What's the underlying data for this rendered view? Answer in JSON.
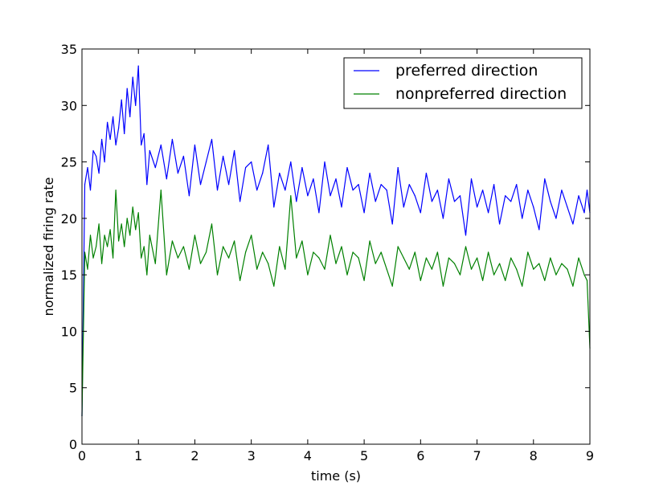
{
  "chart_data": {
    "type": "line",
    "title": "",
    "xlabel": "time (s)",
    "ylabel": "normalized firing rate",
    "xlim": [
      0,
      9
    ],
    "ylim": [
      0,
      35
    ],
    "x_ticks": [
      "0",
      "1",
      "2",
      "3",
      "4",
      "5",
      "6",
      "7",
      "8",
      "9"
    ],
    "y_ticks": [
      "0",
      "5",
      "10",
      "15",
      "20",
      "25",
      "30",
      "35"
    ],
    "grid": false,
    "legend_position": "top-right",
    "x": [
      0,
      0.05,
      0.1,
      0.15,
      0.2,
      0.25,
      0.3,
      0.35,
      0.4,
      0.45,
      0.5,
      0.55,
      0.6,
      0.65,
      0.7,
      0.75,
      0.8,
      0.85,
      0.9,
      0.95,
      1.0,
      1.05,
      1.1,
      1.15,
      1.2,
      1.3,
      1.4,
      1.5,
      1.6,
      1.7,
      1.8,
      1.9,
      2.0,
      2.1,
      2.2,
      2.3,
      2.4,
      2.5,
      2.6,
      2.7,
      2.8,
      2.9,
      3.0,
      3.1,
      3.2,
      3.3,
      3.4,
      3.5,
      3.6,
      3.7,
      3.8,
      3.9,
      4.0,
      4.1,
      4.2,
      4.3,
      4.4,
      4.5,
      4.6,
      4.7,
      4.8,
      4.9,
      5.0,
      5.1,
      5.2,
      5.3,
      5.4,
      5.5,
      5.6,
      5.7,
      5.8,
      5.9,
      6.0,
      6.1,
      6.2,
      6.3,
      6.4,
      6.5,
      6.6,
      6.7,
      6.8,
      6.9,
      7.0,
      7.1,
      7.2,
      7.3,
      7.4,
      7.5,
      7.6,
      7.7,
      7.8,
      7.9,
      8.0,
      8.1,
      8.2,
      8.3,
      8.4,
      8.5,
      8.6,
      8.7,
      8.8,
      8.9,
      8.95,
      9.0
    ],
    "series": [
      {
        "name": "preferred direction",
        "color": "#0000ff",
        "values": [
          2.5,
          23.0,
          24.5,
          22.5,
          26.0,
          25.5,
          24.0,
          27.0,
          25.0,
          28.5,
          27.0,
          29.0,
          26.5,
          28.0,
          30.5,
          27.5,
          31.5,
          29.0,
          32.5,
          30.0,
          33.5,
          26.5,
          27.5,
          23.0,
          26.0,
          24.5,
          26.5,
          23.5,
          27.0,
          24.0,
          25.5,
          22.0,
          26.5,
          23.0,
          25.0,
          27.0,
          22.5,
          25.5,
          23.0,
          26.0,
          21.5,
          24.5,
          25.0,
          22.5,
          24.0,
          26.5,
          21.0,
          24.0,
          22.5,
          25.0,
          21.5,
          24.5,
          22.0,
          23.5,
          20.5,
          25.0,
          22.0,
          23.5,
          21.0,
          24.5,
          22.5,
          23.0,
          20.5,
          24.0,
          21.5,
          23.0,
          22.5,
          19.5,
          24.5,
          21.0,
          23.0,
          22.0,
          20.5,
          24.0,
          21.5,
          22.5,
          20.0,
          23.5,
          21.5,
          22.0,
          18.5,
          23.5,
          21.0,
          22.5,
          20.5,
          23.0,
          19.5,
          22.0,
          21.5,
          23.0,
          20.0,
          22.5,
          21.0,
          19.0,
          23.5,
          21.5,
          20.0,
          22.5,
          21.0,
          19.5,
          22.0,
          20.5,
          22.5,
          20.5
        ]
      },
      {
        "name": "nonpreferred direction",
        "color": "#008000",
        "values": [
          2.5,
          17.0,
          15.5,
          18.5,
          16.5,
          17.5,
          19.5,
          16.0,
          18.5,
          17.5,
          19.0,
          16.5,
          22.5,
          18.0,
          19.5,
          17.5,
          20.0,
          18.5,
          21.0,
          19.0,
          20.5,
          16.5,
          17.5,
          15.0,
          18.5,
          16.0,
          22.5,
          15.0,
          18.0,
          16.5,
          17.5,
          15.5,
          18.5,
          16.0,
          17.0,
          19.5,
          15.0,
          17.5,
          16.5,
          18.0,
          14.5,
          17.0,
          18.5,
          15.5,
          17.0,
          16.0,
          14.0,
          17.5,
          15.5,
          22.0,
          16.5,
          18.0,
          15.0,
          17.0,
          16.5,
          15.5,
          18.5,
          16.0,
          17.5,
          15.0,
          17.0,
          16.5,
          14.5,
          18.0,
          16.0,
          17.0,
          15.5,
          14.0,
          17.5,
          16.5,
          15.5,
          17.0,
          14.5,
          16.5,
          15.5,
          17.0,
          14.0,
          16.5,
          16.0,
          15.0,
          17.5,
          15.5,
          16.5,
          14.5,
          17.0,
          15.0,
          16.0,
          14.5,
          16.5,
          15.5,
          14.0,
          17.0,
          15.5,
          16.0,
          14.5,
          16.5,
          15.0,
          16.0,
          15.5,
          14.0,
          16.5,
          15.0,
          14.5,
          8.5
        ]
      }
    ]
  }
}
